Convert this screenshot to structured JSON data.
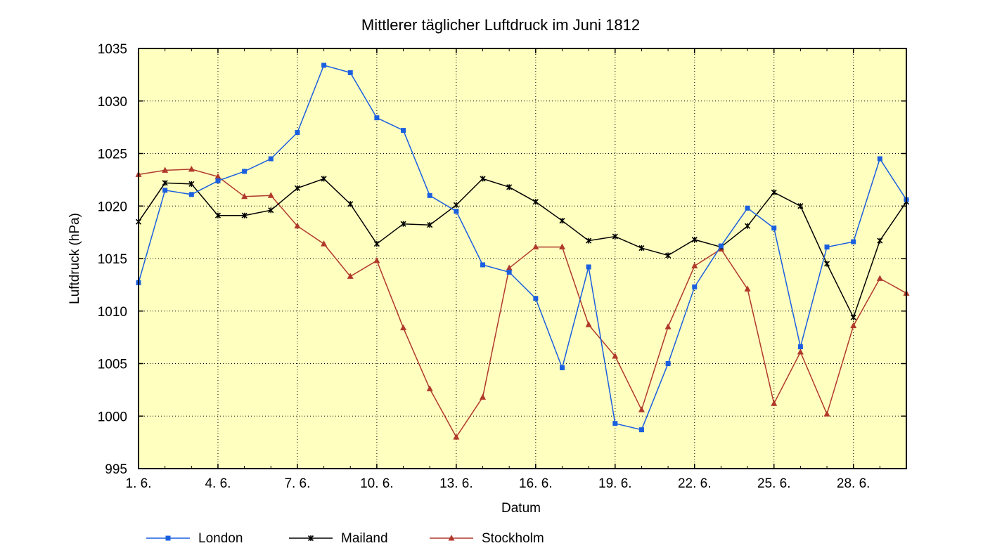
{
  "chart_data": {
    "type": "line",
    "title": "Mittlerer täglicher Luftdruck im Juni 1812",
    "xlabel": "Datum",
    "ylabel": "Luftdruck (hPa)",
    "xlim": [
      1,
      30
    ],
    "ylim": [
      995,
      1035
    ],
    "y_ticks": [
      995,
      1000,
      1005,
      1010,
      1015,
      1020,
      1025,
      1030,
      1035
    ],
    "x_tick_positions": [
      1,
      4,
      7,
      10,
      13,
      16,
      19,
      22,
      25,
      28
    ],
    "x_tick_labels": [
      "1. 6.",
      "4. 6.",
      "7. 6.",
      "10. 6.",
      "13. 6.",
      "16. 6.",
      "19. 6.",
      "22. 6.",
      "25. 6.",
      "28. 6."
    ],
    "grid": true,
    "plot_background": "#ffffc0",
    "legend_position": "bottom",
    "x": [
      1,
      2,
      3,
      4,
      5,
      6,
      7,
      8,
      9,
      10,
      11,
      12,
      13,
      14,
      15,
      16,
      17,
      18,
      19,
      20,
      21,
      22,
      23,
      24,
      25,
      26,
      27,
      28,
      29,
      30
    ],
    "series": [
      {
        "name": "London",
        "color": "#1a5fe0",
        "marker": "square",
        "values": [
          1012.7,
          1021.5,
          1021.1,
          1022.4,
          1023.3,
          1024.5,
          1027.0,
          1033.4,
          1032.7,
          1028.4,
          1027.2,
          1021.0,
          1019.5,
          1014.4,
          1013.7,
          1011.2,
          1004.6,
          1014.2,
          999.3,
          998.7,
          1005.0,
          1012.3,
          1016.2,
          1019.8,
          1017.9,
          1006.6,
          1016.1,
          1016.6,
          1024.5,
          1020.6
        ]
      },
      {
        "name": "Mailand",
        "color": "#000000",
        "marker": "star",
        "values": [
          1018.5,
          1022.2,
          1022.1,
          1019.1,
          1019.1,
          1019.6,
          1021.7,
          1022.6,
          1020.2,
          1016.4,
          1018.3,
          1018.2,
          1020.1,
          1022.6,
          1021.8,
          1020.4,
          1018.6,
          1016.7,
          1017.1,
          1016.0,
          1015.3,
          1016.8,
          1016.1,
          1018.1,
          1021.3,
          1020.0,
          1014.5,
          1009.4,
          1016.7,
          1020.4
        ]
      },
      {
        "name": "Stockholm",
        "color": "#b0392b",
        "marker": "triangle",
        "values": [
          1023.0,
          1023.4,
          1023.5,
          1022.8,
          1020.9,
          1021.0,
          1018.1,
          1016.4,
          1013.3,
          1014.8,
          1008.4,
          1002.6,
          998.0,
          1001.8,
          1014.1,
          1016.1,
          1016.1,
          1008.7,
          1005.7,
          1000.6,
          1008.5,
          1014.3,
          1015.9,
          1012.1,
          1001.2,
          1006.1,
          1000.2,
          1008.6,
          1013.1,
          1011.7
        ]
      }
    ]
  }
}
